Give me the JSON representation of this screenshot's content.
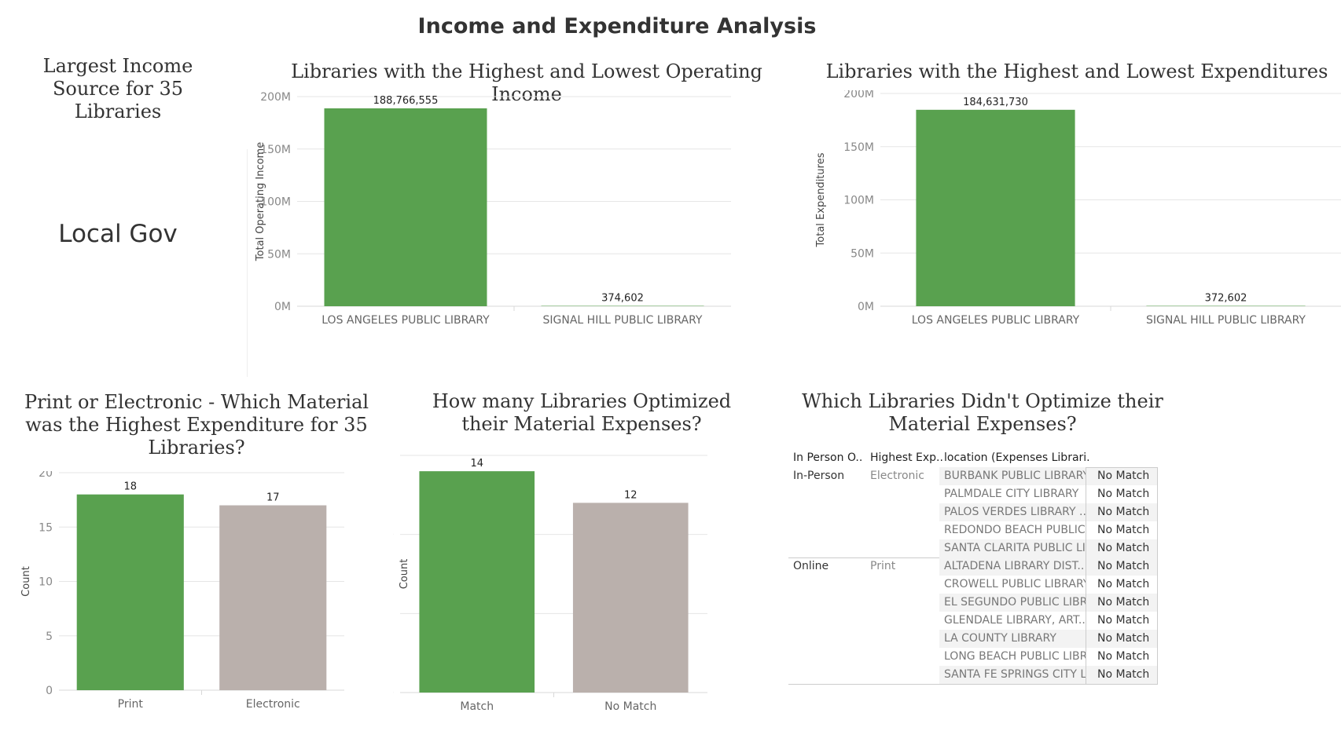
{
  "dashboard": {
    "title": "Income and Expenditure Analysis"
  },
  "kpi": {
    "title": "Largest Income Source for 35 Libraries",
    "value": "Local Gov"
  },
  "colors": {
    "green": "#59a14f",
    "gray": "#bab0ac",
    "grid": "#e6e6e6"
  },
  "chart_data": [
    {
      "id": "income",
      "type": "bar",
      "title": "Libraries with the Highest and Lowest Operating Income",
      "ylabel": "Total Operating Income",
      "categories": [
        "LOS ANGELES PUBLIC LIBRARY",
        "SIGNAL HILL PUBLIC LIBRARY"
      ],
      "values": [
        188766555,
        374602
      ],
      "value_labels": [
        "188,766,555",
        "374,602"
      ],
      "ylim": [
        0,
        200000000
      ],
      "ticks": [
        0,
        50000000,
        100000000,
        150000000,
        200000000
      ],
      "tick_labels": [
        "0M",
        "50M",
        "100M",
        "150M",
        "200M"
      ],
      "colors": [
        "#59a14f",
        "#59a14f"
      ],
      "grid": true
    },
    {
      "id": "expend",
      "type": "bar",
      "title": "Libraries with the Highest and Lowest Expenditures",
      "ylabel": "Total Expenditures",
      "categories": [
        "LOS ANGELES PUBLIC LIBRARY",
        "SIGNAL HILL PUBLIC LIBRARY"
      ],
      "values": [
        184631730,
        372602
      ],
      "value_labels": [
        "184,631,730",
        "372,602"
      ],
      "ylim": [
        0,
        200000000
      ],
      "ticks": [
        0,
        50000000,
        100000000,
        150000000,
        200000000
      ],
      "tick_labels": [
        "0M",
        "50M",
        "100M",
        "150M",
        "200M"
      ],
      "colors": [
        "#59a14f",
        "#59a14f"
      ],
      "grid": true
    },
    {
      "id": "material",
      "type": "bar",
      "title": "Print or Electronic - Which Material was the Highest Expenditure for 35 Libraries?",
      "ylabel": "Count",
      "categories": [
        "Print",
        "Electronic"
      ],
      "values": [
        18,
        17
      ],
      "value_labels": [
        "18",
        "17"
      ],
      "ylim": [
        0,
        20
      ],
      "ticks": [
        0,
        5,
        10,
        15,
        20
      ],
      "tick_labels": [
        "0",
        "5",
        "10",
        "15",
        "20"
      ],
      "colors": [
        "#59a14f",
        "#bab0ac"
      ],
      "grid": true
    },
    {
      "id": "optimized",
      "type": "bar",
      "title": "How many Libraries Optimized their Material Expenses?",
      "ylabel": "Count",
      "categories": [
        "Match",
        "No Match"
      ],
      "values": [
        14,
        12
      ],
      "value_labels": [
        "14",
        "12"
      ],
      "ylim": [
        0,
        15
      ],
      "ticks": [
        0,
        5,
        10,
        15
      ],
      "tick_labels": [
        "0",
        "5",
        "10",
        "15"
      ],
      "colors": [
        "#59a14f",
        "#bab0ac"
      ],
      "grid": true
    },
    {
      "id": "table",
      "type": "table",
      "title": "Which Libraries Didn't Optimize their Material Expenses?",
      "columns": [
        "In Person O..",
        "Highest Exp..",
        "location (Expenses Librari..",
        ""
      ],
      "groups": [
        {
          "in_person": "In-Person",
          "highest": "Electronic",
          "rows": [
            {
              "location": "BURBANK PUBLIC LIBRARY",
              "value": "No Match"
            },
            {
              "location": "PALMDALE CITY LIBRARY",
              "value": "No Match"
            },
            {
              "location": "PALOS VERDES LIBRARY ..",
              "value": "No Match"
            },
            {
              "location": "REDONDO BEACH PUBLIC ..",
              "value": "No Match"
            },
            {
              "location": "SANTA CLARITA PUBLIC LI..",
              "value": "No Match"
            }
          ]
        },
        {
          "in_person": "Online",
          "highest": "Print",
          "rows": [
            {
              "location": "ALTADENA LIBRARY DIST..",
              "value": "No Match"
            },
            {
              "location": "CROWELL PUBLIC LIBRARY",
              "value": "No Match"
            },
            {
              "location": "EL SEGUNDO PUBLIC LIBR..",
              "value": "No Match"
            },
            {
              "location": "GLENDALE LIBRARY, ART..",
              "value": "No Match"
            },
            {
              "location": "LA COUNTY LIBRARY",
              "value": "No Match"
            },
            {
              "location": "LONG BEACH PUBLIC LIBR..",
              "value": "No Match"
            },
            {
              "location": "SANTA FE SPRINGS CITY L..",
              "value": "No Match"
            }
          ]
        }
      ]
    }
  ]
}
